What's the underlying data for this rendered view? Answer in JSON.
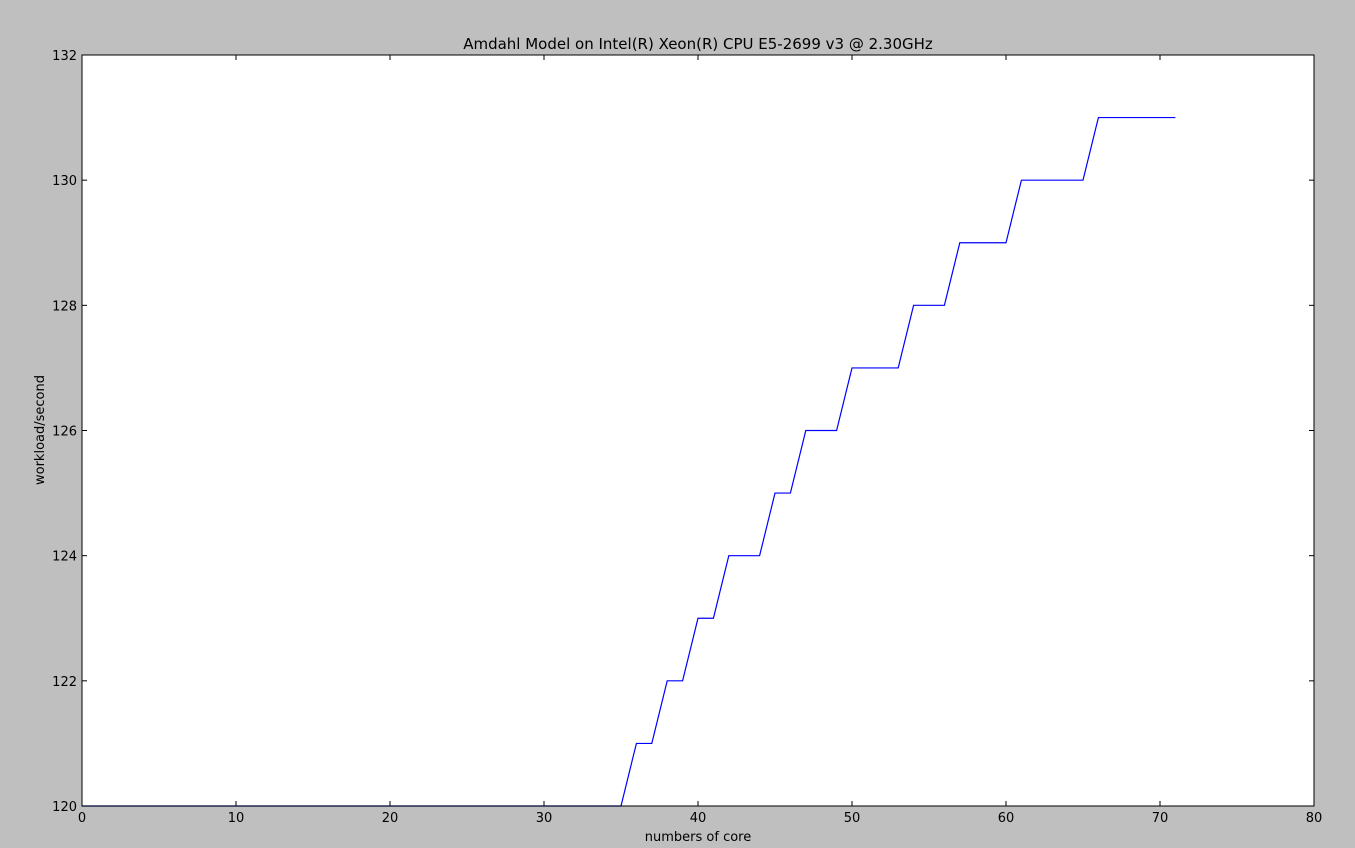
{
  "colors": {
    "figure_background": "#bfbfbf",
    "axes_background": "#ffffff",
    "line": "#0000ff",
    "axes_edge": "#000000"
  },
  "chart_data": {
    "type": "line",
    "title": "Amdahl Model on Intel(R) Xeon(R) CPU E5-2699 v3 @ 2.30GHz",
    "xlabel": "numbers of core",
    "ylabel": "workload/second",
    "xlim": [
      0,
      80
    ],
    "ylim": [
      120,
      132
    ],
    "xticks": [
      0,
      10,
      20,
      30,
      40,
      50,
      60,
      70,
      80
    ],
    "yticks": [
      120,
      122,
      124,
      126,
      128,
      130,
      132
    ],
    "grid": false,
    "legend": "none",
    "series": [
      {
        "x": [
          0,
          1,
          2,
          3,
          4,
          5,
          6,
          7,
          8,
          9,
          10,
          11,
          12,
          13,
          14,
          15,
          16,
          17,
          18,
          19,
          20,
          21,
          22,
          23,
          24,
          25,
          26,
          27,
          28,
          29,
          30,
          31,
          32,
          33,
          34,
          35,
          36,
          37,
          38,
          39,
          40,
          41,
          42,
          43,
          44,
          45,
          46,
          47,
          48,
          49,
          50,
          51,
          52,
          53,
          54,
          55,
          56,
          57,
          58,
          59,
          60,
          61,
          62,
          63,
          64,
          65,
          66,
          67,
          68,
          69,
          70,
          71
        ],
        "y": [
          120,
          120,
          120,
          120,
          120,
          120,
          120,
          120,
          120,
          120,
          120,
          120,
          120,
          120,
          120,
          120,
          120,
          120,
          120,
          120,
          120,
          120,
          120,
          120,
          120,
          120,
          120,
          120,
          120,
          120,
          120,
          120,
          120,
          120,
          120,
          120,
          121,
          121,
          122,
          122,
          123,
          123,
          124,
          124,
          124,
          125,
          125,
          126,
          126,
          126,
          127,
          127,
          127,
          127,
          128,
          128,
          128,
          129,
          129,
          129,
          129,
          130,
          130,
          130,
          130,
          130,
          131,
          131,
          131,
          131,
          131,
          131
        ]
      }
    ]
  }
}
